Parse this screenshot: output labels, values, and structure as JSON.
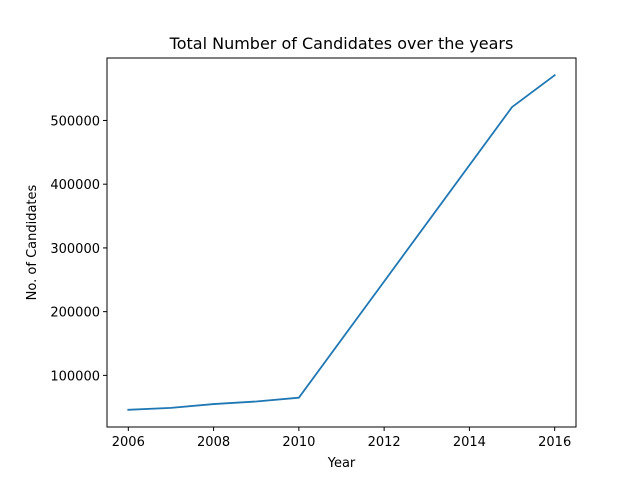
{
  "chart_data": {
    "type": "line",
    "title": "Total Number of Candidates over the years",
    "xlabel": "Year",
    "ylabel": "No. of Candidates",
    "xlim": [
      2005.5,
      2016.5
    ],
    "ylim": [
      19000,
      598000
    ],
    "xticks": [
      2006,
      2008,
      2010,
      2012,
      2014,
      2016
    ],
    "yticks": [
      100000,
      200000,
      300000,
      400000,
      500000
    ],
    "grid": false,
    "series": [
      {
        "color": "#1f77b4",
        "x": [
          2006,
          2007,
          2008,
          2009,
          2010,
          2015,
          2016
        ],
        "y": [
          46000,
          49000,
          55000,
          59000,
          65000,
          521000,
          571000
        ]
      }
    ]
  }
}
